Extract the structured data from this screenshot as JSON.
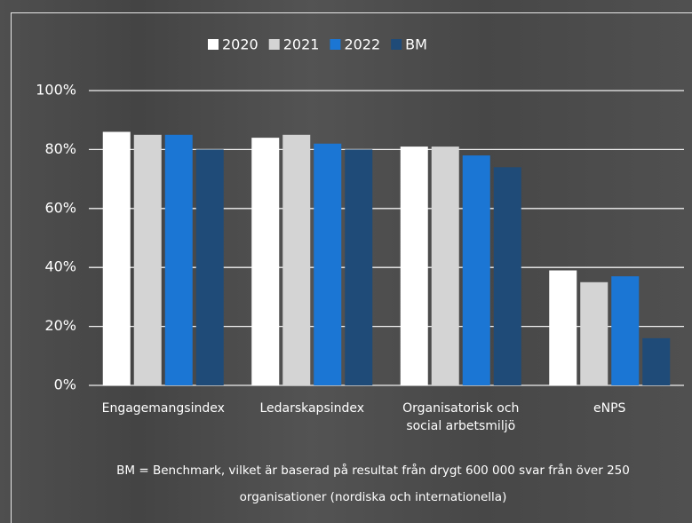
{
  "chart_data": {
    "type": "bar",
    "categories": [
      "Engagemangsindex",
      "Ledarskapsindex",
      "Organisatorisk och social arbetsmiljö",
      "eNPS"
    ],
    "series": [
      {
        "name": "2020",
        "color": "#ffffff",
        "values": [
          86,
          84,
          81,
          39
        ]
      },
      {
        "name": "2021",
        "color": "#d4d4d4",
        "values": [
          85,
          85,
          81,
          35
        ]
      },
      {
        "name": "2022",
        "color": "#1b76d4",
        "values": [
          85,
          82,
          78,
          37
        ]
      },
      {
        "name": "BM",
        "color": "#1f4b78",
        "values": [
          80,
          80,
          74,
          16
        ]
      }
    ],
    "ylim": [
      0,
      100
    ],
    "yticks": [
      {
        "value": 0,
        "label": "0%"
      },
      {
        "value": 20,
        "label": "20%"
      },
      {
        "value": 40,
        "label": "40%"
      },
      {
        "value": 60,
        "label": "60%"
      },
      {
        "value": 80,
        "label": "80%"
      },
      {
        "value": 100,
        "label": "100%"
      }
    ],
    "grid": true,
    "legend": "top",
    "footnote": "BM = Benchmark, vilket är baserad på resultat från drygt 600 000 svar från över 250 organisationer (nordiska och internationella)"
  }
}
